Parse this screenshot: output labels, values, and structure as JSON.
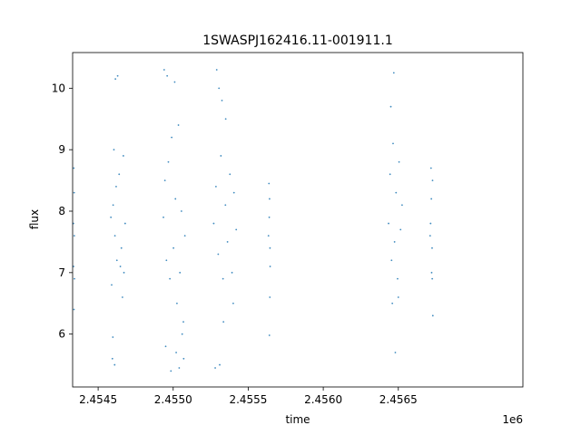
{
  "chart_data": {
    "type": "scatter",
    "title": "1SWASPJ162416.11-001911.1",
    "xlabel": "time",
    "ylabel": "flux",
    "x_offset_label": "1e6",
    "xlim": [
      2454330,
      2457330
    ],
    "ylim": [
      5.14,
      10.58
    ],
    "x_ticks": [
      2454500,
      2455000,
      2455500,
      2456000,
      2456500
    ],
    "x_tick_labels": [
      "2.4545",
      "2.4550",
      "2.4555",
      "2.4560",
      "2.4565"
    ],
    "y_ticks": [
      6,
      7,
      8,
      9,
      10
    ],
    "y_tick_labels": [
      "6",
      "7",
      "8",
      "9",
      "10"
    ],
    "grid": false,
    "marker_color": "#1f77b4",
    "series": [
      {
        "points": [
          [
            2454335,
            7.8
          ],
          [
            2454338,
            8.7
          ],
          [
            2454340,
            8.3
          ],
          [
            2454336,
            7.1
          ],
          [
            2454342,
            6.9
          ],
          [
            2454339,
            6.4
          ],
          [
            2454341,
            7.6
          ],
          [
            2454585,
            7.9
          ],
          [
            2454600,
            8.1
          ],
          [
            2454612,
            7.6
          ],
          [
            2454625,
            7.2
          ],
          [
            2454640,
            8.6
          ],
          [
            2454655,
            7.4
          ],
          [
            2454668,
            8.9
          ],
          [
            2454680,
            7.8
          ],
          [
            2454590,
            6.8
          ],
          [
            2454605,
            9.0
          ],
          [
            2454620,
            8.4
          ],
          [
            2454648,
            7.1
          ],
          [
            2454662,
            6.6
          ],
          [
            2454595,
            5.6
          ],
          [
            2454610,
            5.5
          ],
          [
            2454630,
            10.2
          ],
          [
            2454615,
            10.15
          ],
          [
            2454598,
            5.95
          ],
          [
            2454672,
            7.0
          ],
          [
            2454935,
            7.9
          ],
          [
            2454945,
            8.5
          ],
          [
            2454955,
            7.2
          ],
          [
            2454968,
            8.8
          ],
          [
            2454978,
            6.9
          ],
          [
            2454990,
            9.2
          ],
          [
            2455002,
            7.4
          ],
          [
            2455015,
            8.2
          ],
          [
            2455025,
            6.5
          ],
          [
            2455035,
            9.4
          ],
          [
            2455045,
            7.0
          ],
          [
            2455055,
            8.0
          ],
          [
            2455068,
            6.2
          ],
          [
            2455078,
            7.6
          ],
          [
            2454940,
            10.3
          ],
          [
            2454960,
            10.2
          ],
          [
            2454985,
            5.4
          ],
          [
            2455010,
            10.1
          ],
          [
            2455040,
            5.45
          ],
          [
            2455070,
            5.6
          ],
          [
            2454950,
            5.8
          ],
          [
            2455060,
            6.0
          ],
          [
            2455020,
            5.7
          ],
          [
            2455270,
            7.8
          ],
          [
            2455285,
            8.4
          ],
          [
            2455300,
            7.3
          ],
          [
            2455318,
            8.9
          ],
          [
            2455332,
            6.9
          ],
          [
            2455348,
            8.1
          ],
          [
            2455362,
            7.5
          ],
          [
            2455378,
            8.6
          ],
          [
            2455392,
            7.0
          ],
          [
            2455405,
            8.3
          ],
          [
            2455420,
            7.7
          ],
          [
            2455290,
            10.3
          ],
          [
            2455305,
            10.0
          ],
          [
            2455280,
            5.45
          ],
          [
            2455310,
            5.5
          ],
          [
            2455335,
            6.2
          ],
          [
            2455350,
            9.5
          ],
          [
            2455400,
            6.5
          ],
          [
            2455325,
            9.8
          ],
          [
            2455635,
            7.6
          ],
          [
            2455640,
            7.9
          ],
          [
            2455645,
            7.4
          ],
          [
            2455642,
            8.2
          ],
          [
            2455638,
            8.45
          ],
          [
            2455644,
            6.6
          ],
          [
            2455641,
            5.98
          ],
          [
            2455646,
            7.1
          ],
          [
            2456435,
            7.8
          ],
          [
            2456445,
            8.6
          ],
          [
            2456455,
            7.2
          ],
          [
            2456465,
            9.1
          ],
          [
            2456475,
            7.5
          ],
          [
            2456485,
            8.3
          ],
          [
            2456495,
            6.9
          ],
          [
            2456505,
            8.8
          ],
          [
            2456515,
            7.7
          ],
          [
            2456525,
            8.1
          ],
          [
            2456450,
            9.7
          ],
          [
            2456470,
            10.25
          ],
          [
            2456480,
            5.7
          ],
          [
            2456460,
            6.5
          ],
          [
            2456500,
            6.6
          ],
          [
            2456715,
            7.8
          ],
          [
            2456720,
            8.2
          ],
          [
            2456725,
            7.4
          ],
          [
            2456728,
            8.5
          ],
          [
            2456722,
            7.0
          ],
          [
            2456718,
            8.7
          ],
          [
            2456730,
            6.3
          ],
          [
            2456712,
            7.6
          ],
          [
            2456726,
            6.9
          ]
        ]
      }
    ]
  }
}
